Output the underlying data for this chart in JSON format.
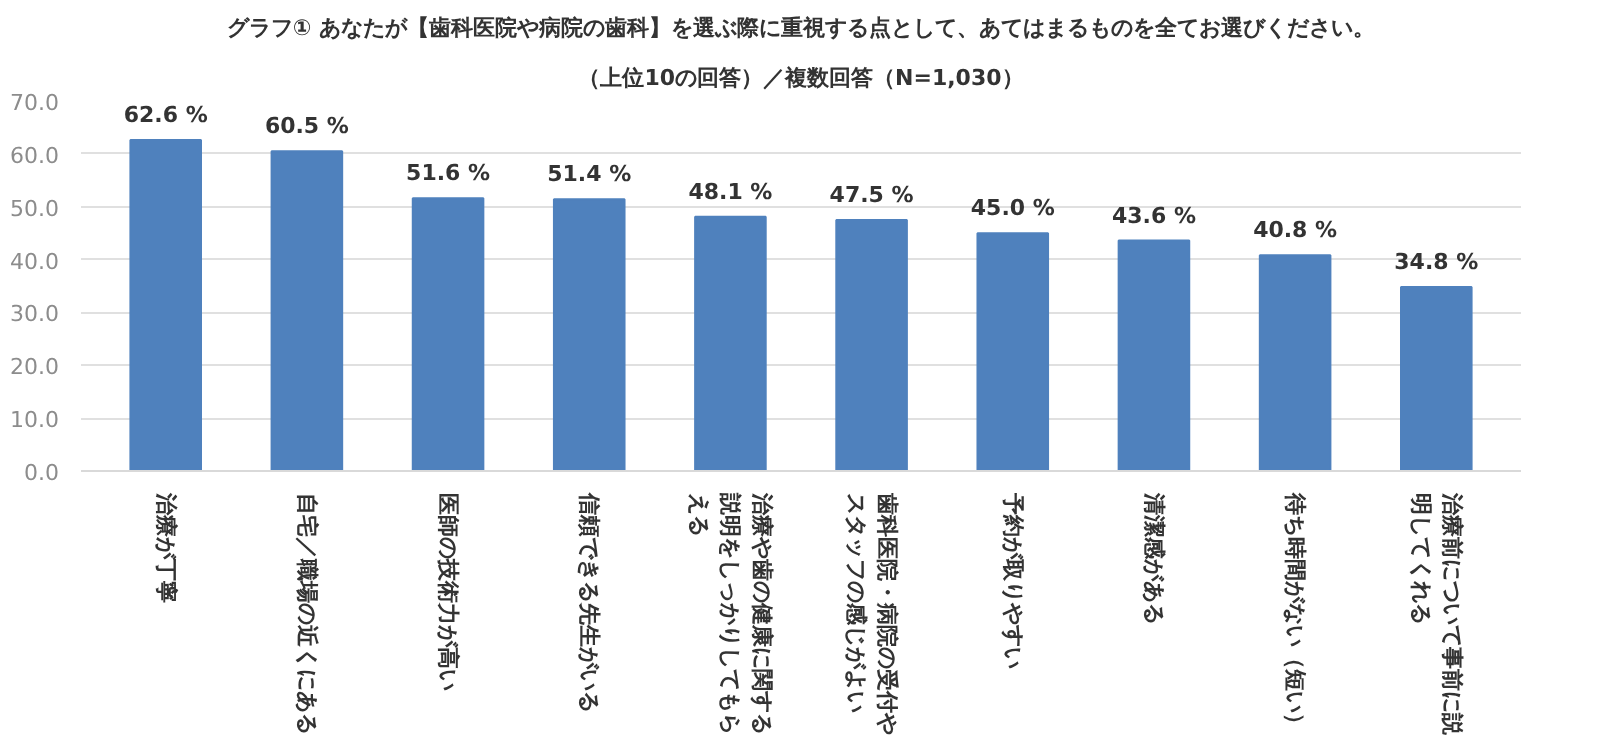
{
  "chart_data": {
    "type": "bar",
    "title": "グラフ① あなたが【歯科医院や病院の歯科】を選ぶ際に重視する点として、あてはまるものを全てお選びください。",
    "subtitle": "（上位10の回答）／複数回答（N=1,030）",
    "categories": [
      "治療が丁寧",
      "自宅／職場の近くにある",
      "医師の技術力が高い",
      "信頼できる先生がいる",
      "治療や歯の健康に関する説明をしっかりしてもらえる",
      "歯科医院・病院の受付やスタッフの感じがよい",
      "予約が取りやすい",
      "清潔感がある",
      "待ち時間がない（短い）",
      "治療前について事前に説明してくれる"
    ],
    "values": [
      62.6,
      60.5,
      51.6,
      51.4,
      48.1,
      47.5,
      45.0,
      43.6,
      40.8,
      34.8
    ],
    "value_labels": [
      "62.6 %",
      "60.5 %",
      "51.6 %",
      "51.4 %",
      "48.1 %",
      "47.5 %",
      "45.0 %",
      "43.6 %",
      "40.8 %",
      "34.8 %"
    ],
    "color": "#4f81bd",
    "ylim": [
      0,
      70
    ],
    "yticks": [
      {
        "value": 0,
        "label": "0.0"
      },
      {
        "value": 10,
        "label": "10.0"
      },
      {
        "value": 20,
        "label": "20.0"
      },
      {
        "value": 30,
        "label": "30.0"
      },
      {
        "value": 40,
        "label": "40.0"
      },
      {
        "value": 50,
        "label": "50.0"
      },
      {
        "value": 60,
        "label": "60.0"
      },
      {
        "value": 70,
        "label": "70.0"
      }
    ],
    "grid": "y"
  }
}
